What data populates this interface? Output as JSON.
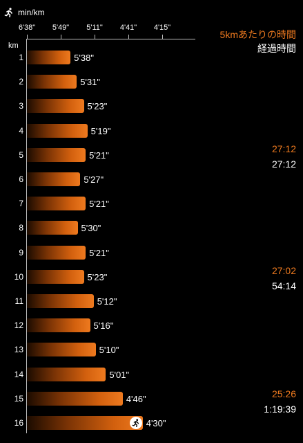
{
  "header": {
    "unit_label": "min/km",
    "icon": "runner-icon"
  },
  "axis": {
    "tick_labels": [
      "6'38\"",
      "5'49\"",
      "5'11\"",
      "4'41\"",
      "4'15\""
    ],
    "row_label": "km"
  },
  "legend": {
    "title": "5kmあたりの時間",
    "subtitle": "経過時間"
  },
  "colors": {
    "accent": "#ee7a1f",
    "background": "#000000"
  },
  "chart_data": {
    "type": "bar",
    "orientation": "horizontal",
    "xlabel": "min/km",
    "ylabel": "km",
    "categories": [
      "1",
      "2",
      "3",
      "4",
      "5",
      "6",
      "7",
      "8",
      "9",
      "10",
      "11",
      "12",
      "13",
      "14",
      "15",
      "16"
    ],
    "values": [
      "5'38\"",
      "5'31\"",
      "5'23\"",
      "5'19\"",
      "5'21\"",
      "5'27\"",
      "5'21\"",
      "5'30\"",
      "5'21\"",
      "5'23\"",
      "5'12\"",
      "5'16\"",
      "5'10\"",
      "5'01\"",
      "4'46\"",
      "4'30\""
    ],
    "values_seconds": [
      338,
      331,
      323,
      319,
      321,
      327,
      321,
      330,
      321,
      323,
      312,
      316,
      310,
      301,
      286,
      270
    ],
    "axis_tick_labels": [
      "6'38\"",
      "5'49\"",
      "5'11\"",
      "4'41\"",
      "4'15\""
    ],
    "axis_tick_seconds": [
      398,
      349,
      311,
      281,
      255
    ]
  },
  "splits": [
    {
      "after_km": "5",
      "split_time": "27:12",
      "elapsed": "27:12"
    },
    {
      "after_km": "10",
      "split_time": "27:02",
      "elapsed": "54:14"
    },
    {
      "after_km": "15",
      "split_time": "25:26",
      "elapsed": "1:19:39"
    }
  ]
}
